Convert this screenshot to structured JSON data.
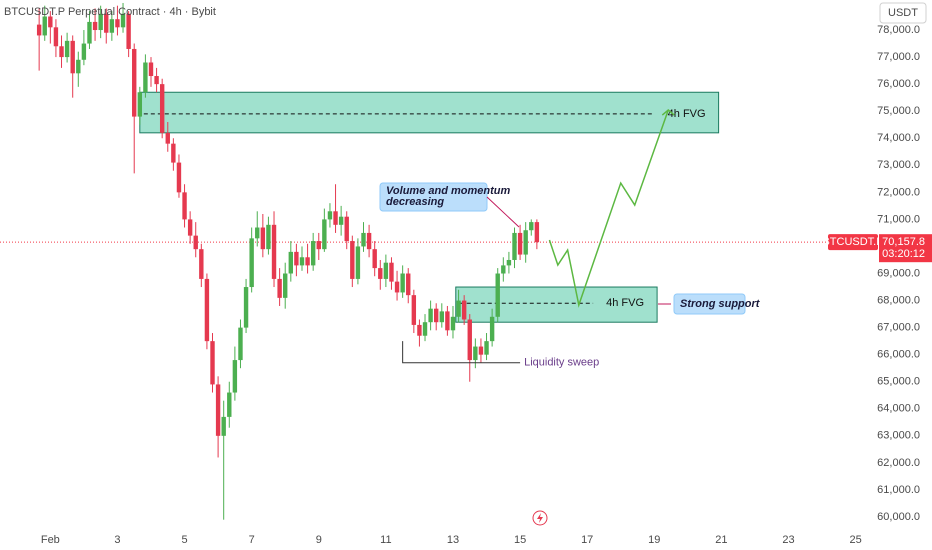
{
  "chart_data": {
    "type": "candlestick",
    "title": "BTCUSDT.P Perpetual Contract · 4h · Bybit",
    "currency": "USDT",
    "up_color": "#4caf50",
    "down_color": "#e5394f",
    "xlim": [
      -36,
      592
    ],
    "ylim": [
      59630,
      79110
    ],
    "grid": false,
    "xticks": [
      {
        "value": 0,
        "label": "Feb"
      },
      {
        "value": 48,
        "label": "3"
      },
      {
        "value": 96,
        "label": "5"
      },
      {
        "value": 144,
        "label": "7"
      },
      {
        "value": 192,
        "label": "9"
      },
      {
        "value": 240,
        "label": "11"
      },
      {
        "value": 288,
        "label": "13"
      },
      {
        "value": 336,
        "label": "15"
      },
      {
        "value": 384,
        "label": "17"
      },
      {
        "value": 432,
        "label": "19"
      },
      {
        "value": 480,
        "label": "21"
      },
      {
        "value": 528,
        "label": "23"
      },
      {
        "value": 576,
        "label": "25"
      }
    ],
    "yticks": [
      {
        "value": 60000,
        "label": "60,000.0"
      },
      {
        "value": 61000,
        "label": "61,000.0"
      },
      {
        "value": 62000,
        "label": "62,000.0"
      },
      {
        "value": 63000,
        "label": "63,000.0"
      },
      {
        "value": 64000,
        "label": "64,000.0"
      },
      {
        "value": 65000,
        "label": "65,000.0"
      },
      {
        "value": 66000,
        "label": "66,000.0"
      },
      {
        "value": 67000,
        "label": "67,000.0"
      },
      {
        "value": 68000,
        "label": "68,000.0"
      },
      {
        "value": 69000,
        "label": "69,000.0"
      },
      {
        "value": 71000,
        "label": "71,000.0"
      },
      {
        "value": 72000,
        "label": "72,000.0"
      },
      {
        "value": 73000,
        "label": "73,000.0"
      },
      {
        "value": 74000,
        "label": "74,000.0"
      },
      {
        "value": 75000,
        "label": "75,000.0"
      },
      {
        "value": 76000,
        "label": "76,000.0"
      },
      {
        "value": 77000,
        "label": "77,000.0"
      },
      {
        "value": 78000,
        "label": "78,000.0"
      }
    ],
    "x": [
      -8,
      -4,
      0,
      4,
      8,
      12,
      16,
      20,
      24,
      28,
      32,
      36,
      40,
      44,
      48,
      52,
      56,
      60,
      64,
      68,
      72,
      76,
      80,
      84,
      88,
      92,
      96,
      100,
      104,
      108,
      112,
      116,
      120,
      124,
      128,
      132,
      136,
      140,
      144,
      148,
      152,
      156,
      160,
      164,
      168,
      172,
      176,
      180,
      184,
      188,
      192,
      196,
      200,
      204,
      208,
      212,
      216,
      220,
      224,
      228,
      232,
      236,
      240,
      244,
      248,
      252,
      256,
      260,
      264,
      268,
      272,
      276,
      280,
      284,
      288,
      292,
      296,
      300,
      304,
      308,
      312,
      316,
      320,
      324,
      328,
      332,
      336,
      340,
      344,
      348
    ],
    "open": [
      78200,
      77800,
      78500,
      78100,
      77400,
      77000,
      77600,
      76400,
      76900,
      77500,
      78300,
      78000,
      78600,
      77900,
      78400,
      78100,
      78600,
      77300,
      74800,
      75700,
      76800,
      76300,
      76000,
      74200,
      73800,
      73100,
      72000,
      71000,
      70400,
      69900,
      68800,
      66500,
      64900,
      63000,
      63700,
      64600,
      65800,
      67000,
      68500,
      70300,
      70700,
      69900,
      70800,
      68800,
      68100,
      69000,
      69800,
      69300,
      69600,
      69300,
      70200,
      69900,
      71000,
      71300,
      70800,
      71100,
      70200,
      68800,
      70000,
      70500,
      69900,
      69200,
      68800,
      69400,
      68700,
      68300,
      69000,
      68200,
      67100,
      66700,
      67200,
      67700,
      67200,
      67600,
      66900,
      67400,
      68000,
      67300,
      65800,
      66300,
      66000,
      66500,
      67400,
      69000,
      69300,
      69500,
      70500,
      69700,
      70600,
      70900
    ],
    "high": [
      78800,
      78900,
      78700,
      78400,
      77800,
      77900,
      77800,
      77200,
      78000,
      78700,
      78800,
      78900,
      78800,
      78700,
      78900,
      79000,
      78700,
      77500,
      75900,
      77100,
      77000,
      76600,
      76200,
      74600,
      74000,
      73400,
      72300,
      71300,
      70900,
      70100,
      69000,
      66800,
      65200,
      64300,
      65000,
      66300,
      67300,
      68800,
      70700,
      71300,
      71200,
      71100,
      71300,
      69200,
      69400,
      70200,
      70100,
      70000,
      70100,
      70500,
      70500,
      71400,
      71600,
      72300,
      71500,
      71300,
      70400,
      70300,
      70900,
      70800,
      70200,
      69500,
      69700,
      69600,
      69100,
      69300,
      69200,
      68400,
      67300,
      67500,
      68000,
      67900,
      67900,
      67800,
      67800,
      68400,
      68200,
      67500,
      66600,
      66600,
      66800,
      67700,
      69200,
      69600,
      69800,
      70700,
      70800,
      70900,
      71000,
      71000
    ],
    "low": [
      76500,
      77600,
      77500,
      77000,
      76600,
      76800,
      75500,
      75900,
      76700,
      77300,
      77600,
      77700,
      77500,
      77600,
      77800,
      77900,
      77000,
      72700,
      74500,
      75500,
      75900,
      75700,
      74000,
      73500,
      72800,
      71800,
      70700,
      70100,
      69600,
      68500,
      66200,
      64600,
      62200,
      59900,
      63300,
      64300,
      65500,
      66800,
      68300,
      70000,
      69600,
      69700,
      68500,
      67800,
      67700,
      68700,
      68900,
      69100,
      69000,
      69100,
      69500,
      69800,
      70700,
      70500,
      70400,
      69900,
      68500,
      68600,
      69800,
      69600,
      68900,
      68400,
      68500,
      68400,
      68000,
      68100,
      67900,
      66800,
      66300,
      66500,
      66900,
      66900,
      67000,
      66700,
      66600,
      67200,
      67100,
      65000,
      65500,
      65700,
      65800,
      66300,
      67200,
      68700,
      69000,
      69200,
      69500,
      69400,
      70400,
      69900
    ],
    "close": [
      77800,
      78500,
      78100,
      77400,
      77000,
      77600,
      76400,
      76900,
      77500,
      78300,
      78000,
      78600,
      77900,
      78400,
      78100,
      78600,
      77300,
      74800,
      75700,
      76800,
      76300,
      76000,
      74200,
      73800,
      73100,
      72000,
      71000,
      70400,
      69900,
      68800,
      66500,
      64900,
      63000,
      63700,
      64600,
      65800,
      67000,
      68500,
      70300,
      70700,
      69900,
      70800,
      68800,
      68100,
      69000,
      69800,
      69300,
      69600,
      69300,
      70200,
      69900,
      71000,
      71300,
      70800,
      71100,
      70200,
      68800,
      70000,
      70500,
      69900,
      69200,
      68800,
      69400,
      68700,
      68300,
      69000,
      68200,
      67100,
      66700,
      67200,
      67700,
      67200,
      67600,
      66900,
      67400,
      68000,
      67300,
      65800,
      66300,
      66000,
      66500,
      67400,
      69000,
      69300,
      69500,
      70500,
      69700,
      70600,
      70900,
      70157.8
    ],
    "last_price": {
      "value": 70157.8,
      "label": "70,157.8",
      "symbol": "BTCUSDT.P",
      "countdown": "03:20:12",
      "color": "#f23645"
    },
    "zones": [
      {
        "label": "4h FVG",
        "x": [
          64,
          478
        ],
        "y": [
          74200,
          75700
        ],
        "level": 74900
      },
      {
        "label": "4h FVG",
        "x": [
          290,
          434
        ],
        "y": [
          67200,
          68500
        ],
        "level": 67900
      }
    ],
    "zone_color": "#8fdcc6",
    "projection": {
      "color": "#5cb842",
      "x": [
        357,
        363,
        370,
        378,
        408,
        418,
        442
      ],
      "y": [
        70237,
        69313,
        69867,
        67834,
        72344,
        71530,
        75043
      ]
    },
    "sweep": {
      "label": "Liquidity sweep",
      "x": [
        252,
        336
      ],
      "y": [
        65700,
        66500
      ]
    },
    "callouts": {
      "momentum": [
        "Volume and momentum",
        "decreasing"
      ],
      "support": "Strong support"
    }
  }
}
